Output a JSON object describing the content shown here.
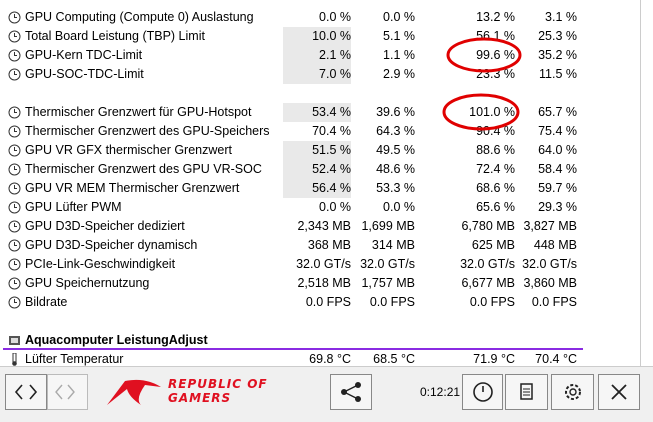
{
  "groups": [
    {
      "rows": [
        {
          "label": "GPU Computing (Compute 0) Auslastung",
          "values": [
            "0.0 %",
            "0.0 %",
            "13.2 %",
            "3.1 %"
          ]
        },
        {
          "label": "Total Board Leistung (TBP) Limit",
          "values": [
            "10.0 %",
            "5.1 %",
            "56.1 %",
            "25.3 %"
          ]
        },
        {
          "label": "GPU-Kern TDC-Limit",
          "values": [
            "2.1 %",
            "1.1 %",
            "99.6 %",
            "35.2 %"
          ]
        },
        {
          "label": "GPU-SOC-TDC-Limit",
          "values": [
            "7.0 %",
            "2.9 %",
            "23.3 %",
            "11.5 %"
          ]
        }
      ]
    },
    {
      "rows": [
        {
          "label": "Thermischer Grenzwert für GPU-Hotspot",
          "values": [
            "53.4 %",
            "39.6 %",
            "101.0 %",
            "65.7 %"
          ]
        },
        {
          "label": "Thermischer Grenzwert des GPU-Speichers",
          "values": [
            "70.4 %",
            "64.3 %",
            "90.4 %",
            "75.4 %"
          ]
        },
        {
          "label": "GPU VR GFX thermischer Grenzwert",
          "values": [
            "51.5 %",
            "49.5 %",
            "88.6 %",
            "64.0 %"
          ]
        },
        {
          "label": "Thermischer Grenzwert des GPU VR-SOC",
          "values": [
            "52.4 %",
            "48.6 %",
            "72.4 %",
            "58.4 %"
          ]
        },
        {
          "label": "GPU VR MEM Thermischer Grenzwert",
          "values": [
            "56.4 %",
            "53.3 %",
            "68.6 %",
            "59.7 %"
          ]
        },
        {
          "label": "GPU Lüfter PWM",
          "values": [
            "0.0 %",
            "0.0 %",
            "65.6 %",
            "29.3 %"
          ]
        },
        {
          "label": "GPU D3D-Speicher dediziert",
          "values": [
            "2,343 MB",
            "1,699 MB",
            "6,780 MB",
            "3,827 MB"
          ]
        },
        {
          "label": "GPU D3D-Speicher dynamisch",
          "values": [
            "368 MB",
            "314 MB",
            "625 MB",
            "448 MB"
          ]
        },
        {
          "label": "PCIe-Link-Geschwindigkeit",
          "values": [
            "32.0 GT/s",
            "32.0 GT/s",
            "32.0 GT/s",
            "32.0 GT/s"
          ]
        },
        {
          "label": "GPU Speichernutzung",
          "values": [
            "2,518 MB",
            "1,757 MB",
            "6,677 MB",
            "3,860 MB"
          ]
        },
        {
          "label": "Bildrate",
          "values": [
            "0.0 FPS",
            "0.0 FPS",
            "0.0 FPS",
            "0.0 FPS"
          ]
        }
      ]
    }
  ],
  "section": {
    "title": "Aquacomputer LeistungAdjust",
    "rows": [
      {
        "label": "Lüfter Temperatur",
        "values": [
          "69.8 °C",
          "68.5 °C",
          "71.9 °C",
          "70.4 °C"
        ]
      }
    ]
  },
  "toolbar": {
    "logo_top": "REPUBLIC OF",
    "logo_bottom": "GAMERS",
    "timer": "0:12:21"
  }
}
